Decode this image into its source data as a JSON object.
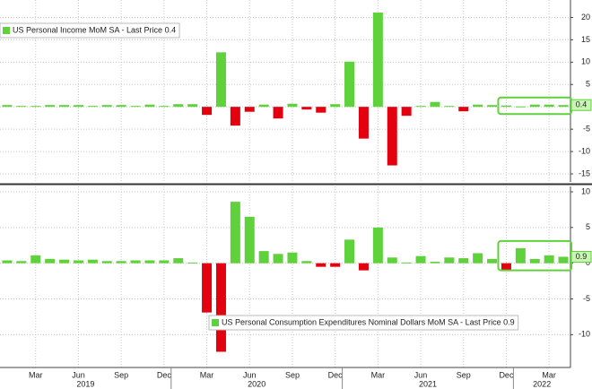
{
  "chart_data": [
    {
      "type": "bar",
      "categories": [
        null,
        null,
        "Mar",
        null,
        null,
        "Jun",
        null,
        null,
        "Sep",
        null,
        null,
        "Dec",
        null,
        null,
        "Mar",
        null,
        null,
        "Jun",
        null,
        null,
        "Sep",
        null,
        null,
        "Dec",
        null,
        null,
        "Mar",
        null,
        null,
        "Jun",
        null,
        null,
        "Sep",
        null,
        null,
        "Dec",
        null,
        null,
        "Mar",
        null
      ],
      "years": [
        "2019",
        "2020",
        "2021",
        "2022"
      ],
      "series": [
        {
          "name": "US Personal Income MoM SA - Last Price 0.4",
          "color": "#5fd13a",
          "negative_color": "#e3000f",
          "values": [
            0.4,
            0.2,
            0.2,
            0.4,
            0.4,
            0.4,
            0.2,
            0.4,
            0.4,
            0.2,
            0.5,
            0.2,
            0.6,
            0.6,
            -1.8,
            12.2,
            -4.2,
            -1.1,
            0.5,
            -2.6,
            0.7,
            -0.6,
            -1.3,
            0.6,
            10.1,
            -7.1,
            21.1,
            -13.1,
            -2.0,
            0.2,
            1.1,
            0.2,
            -1.0,
            0.5,
            0.4,
            0.3,
            0.1,
            0.5,
            0.5,
            0.4
          ]
        }
      ],
      "last_price": 0.4,
      "ylim": [
        -16.8,
        23.9
      ],
      "yticks": [
        -15,
        -10,
        -5,
        0,
        5,
        10,
        15,
        20
      ],
      "grid": true
    },
    {
      "type": "bar",
      "series": [
        {
          "name": "US Personal Consumption Expenditures Nominal Dollars MoM SA - Last Price 0.9",
          "color": "#5fd13a",
          "negative_color": "#e3000f",
          "values": [
            0.4,
            0.3,
            1.1,
            0.6,
            0.5,
            0.4,
            0.5,
            0.3,
            0.3,
            0.4,
            0.4,
            0.4,
            0.7,
            0.1,
            -6.9,
            -12.4,
            8.6,
            6.5,
            1.7,
            1.3,
            1.5,
            0.3,
            -0.5,
            -0.5,
            3.3,
            -1.0,
            5.0,
            0.8,
            0.1,
            1.0,
            0.2,
            0.8,
            0.7,
            1.4,
            0.6,
            -1.0,
            2.1,
            0.6,
            1.1,
            0.9
          ]
        }
      ],
      "last_price": 0.9,
      "ylim": [
        -14.6,
        10.75
      ],
      "yticks": [
        -10,
        -5,
        0,
        5,
        10
      ],
      "grid": true
    }
  ]
}
